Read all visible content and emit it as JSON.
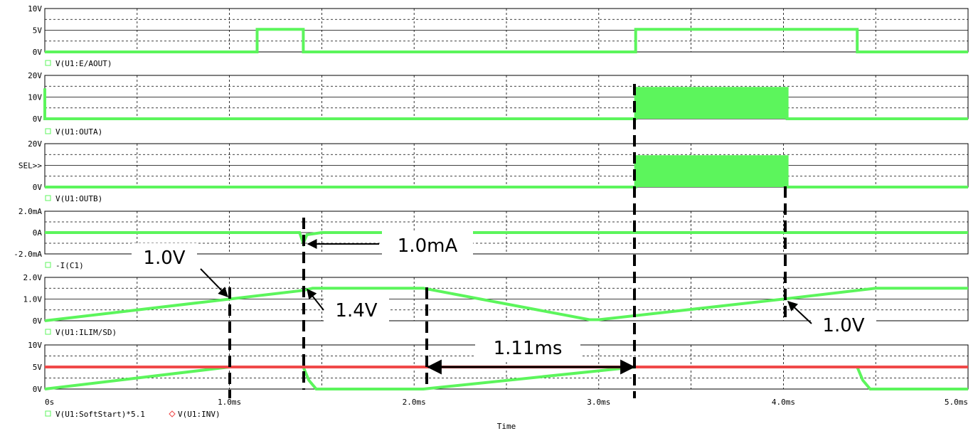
{
  "colors": {
    "green": "#5cf55c",
    "red": "#f04848",
    "grid": "#000000",
    "background": "#ffffff"
  },
  "x_axis": {
    "label": "Time",
    "range_ms": [
      0,
      5
    ],
    "ticks": [
      {
        "t": 0,
        "label": "0s"
      },
      {
        "t": 1,
        "label": "1.0ms"
      },
      {
        "t": 2,
        "label": "2.0ms"
      },
      {
        "t": 3,
        "label": "3.0ms"
      },
      {
        "t": 4,
        "label": "4.0ms"
      },
      {
        "t": 5,
        "label": "5.0ms"
      }
    ]
  },
  "chart_data": [
    {
      "type": "line",
      "name": "V(U1:E/AOUT)",
      "ylim": [
        0,
        10
      ],
      "ytick_labels": [
        "10V",
        "5V",
        "0V"
      ],
      "series": [
        {
          "name": "V(U1:E/AOUT)",
          "color": "green",
          "x": [
            0,
            1.15,
            1.15,
            1.4,
            1.4,
            3.2,
            3.2,
            4.4,
            4.4,
            5.0
          ],
          "y": [
            0,
            0,
            5.2,
            5.2,
            0,
            0,
            5.2,
            5.2,
            0,
            0
          ]
        }
      ]
    },
    {
      "type": "line",
      "name": "V(U1:OUTA)",
      "ylim": [
        0,
        20
      ],
      "ytick_labels": [
        "20V",
        "10V",
        "0V"
      ],
      "series": [
        {
          "name": "V(U1:OUTA)",
          "color": "green",
          "x": [
            0,
            0,
            0.01,
            3.2,
            3.2,
            4.02,
            4.02,
            5.0
          ],
          "y": [
            14,
            0,
            0,
            0,
            14,
            14,
            0,
            0
          ],
          "switching_band_ms": [
            3.2,
            4.02
          ]
        }
      ]
    },
    {
      "type": "line",
      "name": "V(U1:OUTB)",
      "ylim": [
        0,
        20
      ],
      "ytick_labels": [
        "20V",
        "SEL>>",
        "0V"
      ],
      "series": [
        {
          "name": "V(U1:OUTB)",
          "color": "green",
          "x": [
            0,
            3.2,
            3.2,
            4.02,
            4.02,
            5.0
          ],
          "y": [
            0,
            0,
            14,
            14,
            0,
            0
          ],
          "switching_band_ms": [
            3.2,
            4.02
          ]
        }
      ]
    },
    {
      "type": "line",
      "name": "-I(C1)",
      "ylim": [
        -2,
        2
      ],
      "ytick_labels": [
        "2.0mA",
        "0A",
        "-2.0mA"
      ],
      "series": [
        {
          "name": "-I(C1)",
          "color": "green",
          "x": [
            0,
            1.3,
            1.38,
            1.4,
            1.42,
            1.5,
            3.2,
            5.0
          ],
          "y": [
            0,
            0,
            0,
            -1.0,
            -0.2,
            0,
            0,
            0
          ]
        }
      ]
    },
    {
      "type": "line",
      "name": "V(U1:ILIM/SD)",
      "ylim": [
        0,
        2
      ],
      "ytick_labels": [
        "2.0V",
        "1.0V",
        "0V"
      ],
      "series": [
        {
          "name": "V(U1:ILIM/SD)",
          "color": "green",
          "x": [
            0,
            1.0,
            1.4,
            1.45,
            2.05,
            2.95,
            3.0,
            4.0,
            4.5,
            5.0
          ],
          "y": [
            0,
            1.0,
            1.4,
            1.5,
            1.5,
            0.05,
            0.05,
            1.0,
            1.5,
            1.5
          ]
        }
      ]
    },
    {
      "type": "line",
      "name": "V(U1:SoftStart)*5.1 / V(U1:INV)",
      "ylim": [
        0,
        10
      ],
      "ytick_labels": [
        "10V",
        "5V",
        "0V"
      ],
      "series": [
        {
          "name": "V(U1:SoftStart)*5.1",
          "color": "green",
          "x": [
            0,
            1.0,
            1.22,
            1.4,
            1.43,
            1.47,
            2.05,
            3.2,
            3.2,
            4.4,
            4.43,
            4.47,
            5.0
          ],
          "y": [
            0,
            5.0,
            5.0,
            5.0,
            2.0,
            0,
            0,
            5.0,
            5.0,
            5.0,
            2.0,
            0,
            0
          ]
        },
        {
          "name": "V(U1:INV)",
          "color": "red",
          "x": [
            0,
            5.0
          ],
          "y": [
            5.0,
            5.0
          ]
        }
      ]
    }
  ],
  "legends": [
    "V(U1:E/AOUT)",
    "V(U1:OUTA)",
    "V(U1:OUTB)",
    "-I(C1)",
    "V(U1:ILIM/SD)",
    "V(U1:SoftStart)*5.1",
    "V(U1:INV)"
  ],
  "annotations": {
    "label_1v_left": "1.0V",
    "label_1mA": "1.0mA",
    "label_1p4v": "1.4V",
    "label_1v_right": "1.0V",
    "label_1p11ms": "1.11ms"
  }
}
